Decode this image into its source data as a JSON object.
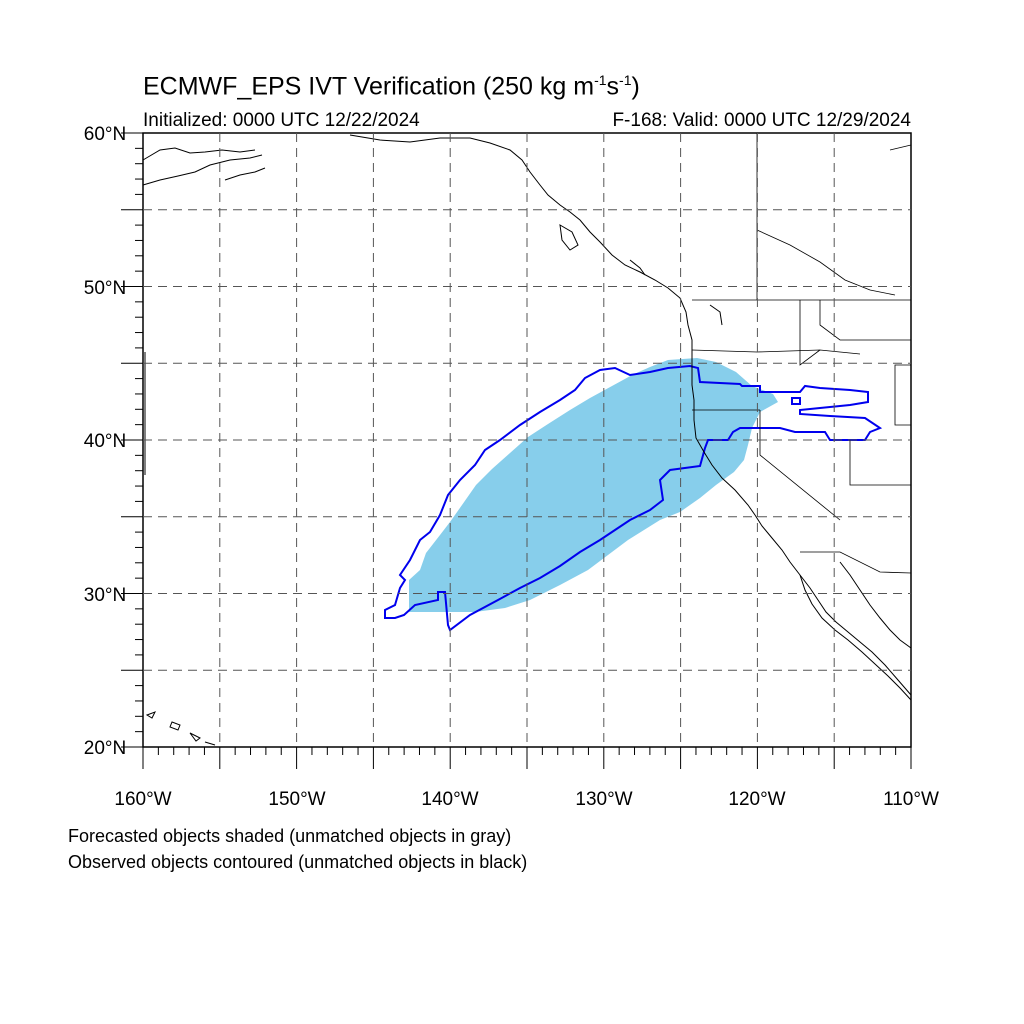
{
  "title": {
    "main_prefix": "ECMWF_EPS IVT Verification (250 kg m",
    "exp1": "-1",
    "mid": "s",
    "exp2": "-1",
    "suffix": ")"
  },
  "initialized": "Initialized: 0000 UTC 12/22/2024",
  "valid": "F-168: Valid: 0000 UTC 12/29/2024",
  "notes": {
    "forecast": "Forecasted objects shaded (unmatched objects in gray)",
    "observed": "Observed objects contoured (unmatched objects in black)"
  },
  "axes": {
    "lat_labels": [
      "60°N",
      "50°N",
      "40°N",
      "30°N",
      "20°N"
    ],
    "lon_labels": [
      "160°W",
      "150°W",
      "140°W",
      "130°W",
      "120°W",
      "110°W"
    ],
    "lat_range": [
      20,
      60
    ],
    "lon_range": [
      -160,
      -110
    ]
  },
  "colors": {
    "forecast_fill": "#87CEEB",
    "observed_contour": "#0000EE",
    "grid": "#555555",
    "coast": "#000000"
  }
}
